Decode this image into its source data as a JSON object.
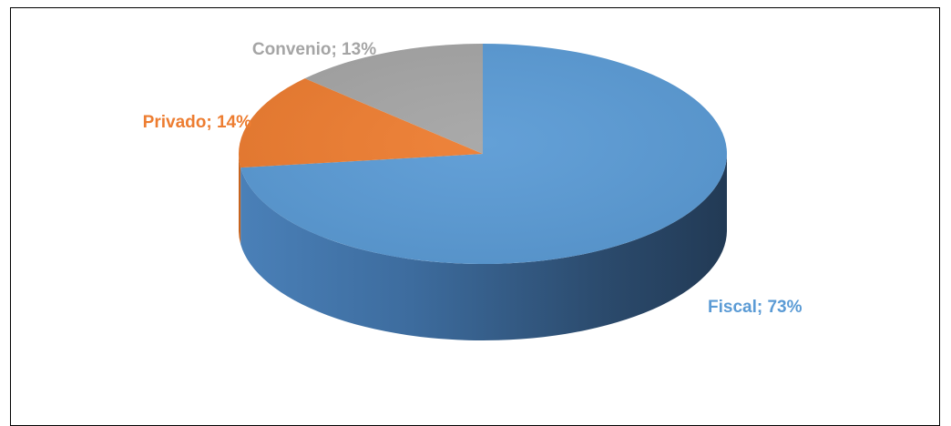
{
  "chart_data": {
    "type": "pie",
    "three_d": true,
    "legend": "none",
    "slices": [
      {
        "label": "Fiscal",
        "value": 73,
        "display": "Fiscal; 73%",
        "color": "#5B9BD5",
        "side_dark": "#24384f",
        "side_light": "#4a7fb3"
      },
      {
        "label": "Privado",
        "value": 14,
        "display": "Privado; 14%",
        "color": "#ED7D31",
        "side_dark": "#9a4a16",
        "side_light": "#c7641f"
      },
      {
        "label": "Convenio",
        "value": 13,
        "display": "Convenio; 13%",
        "color": "#A5A5A5",
        "side_dark": "#5e5e5e",
        "side_light": "#8c8c8c"
      }
    ]
  }
}
